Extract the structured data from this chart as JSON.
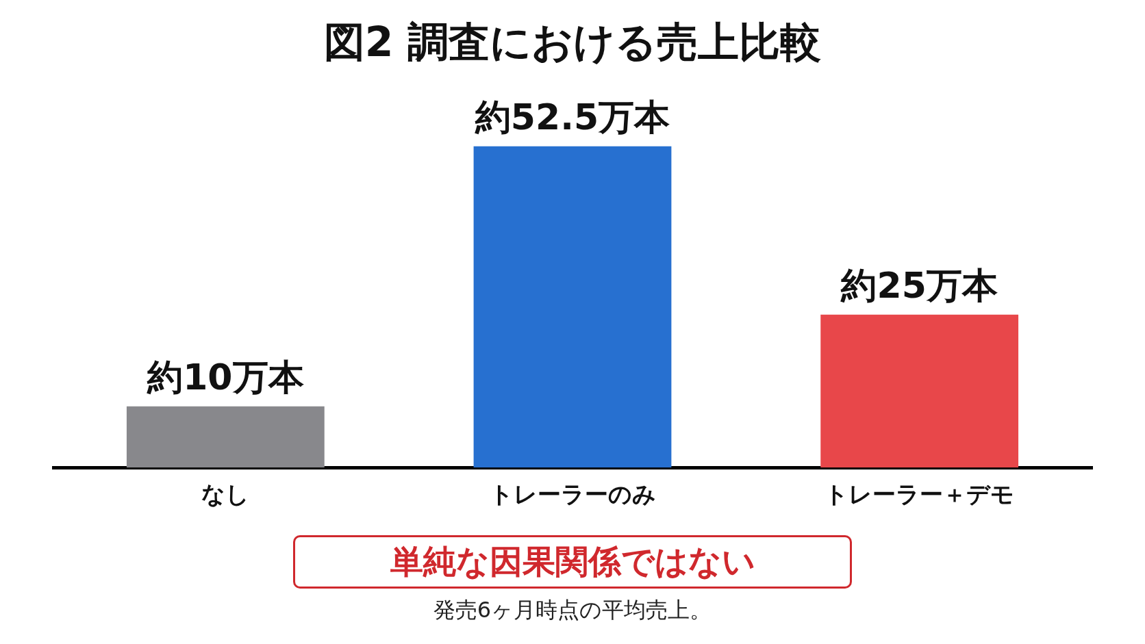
{
  "chart_data": {
    "type": "bar",
    "title": "図2 調査における売上比較",
    "categories": [
      "なし",
      "トレーラーのみ",
      "トレーラー＋デモ"
    ],
    "values": [
      10,
      52.5,
      25
    ],
    "colors": [
      "#88888c",
      "#2770d0",
      "#e8474a"
    ],
    "value_labels": [
      "約10万本",
      "約52.5万本",
      "約25万本"
    ],
    "annotations": [
      "単純な因果関係ではない",
      "発売6ヶ月時点の平均売上。"
    ]
  }
}
